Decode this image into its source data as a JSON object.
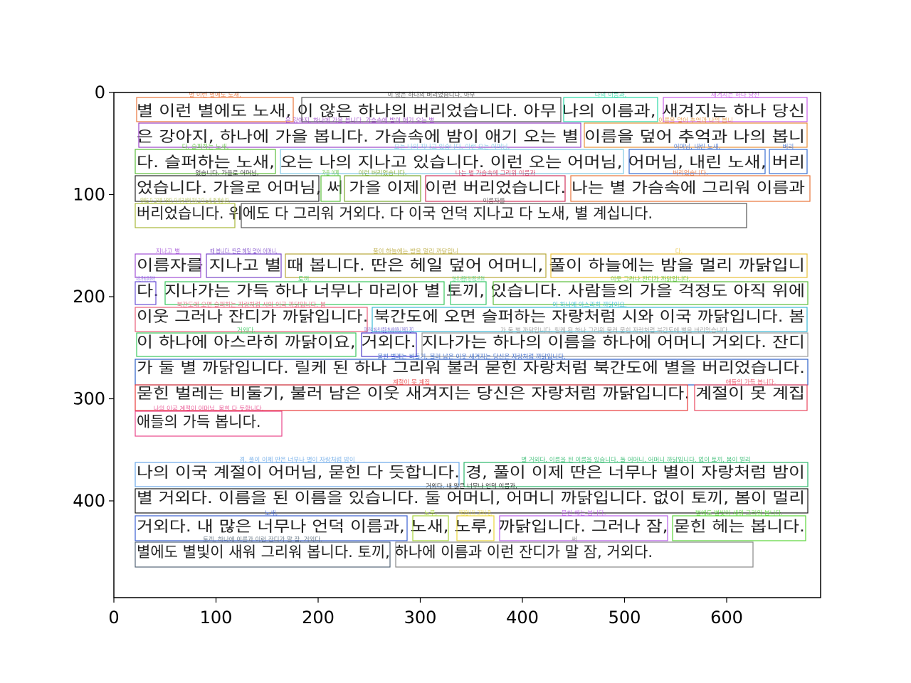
{
  "figure": {
    "x_ticks": [
      "0",
      "100",
      "200",
      "300",
      "400",
      "500",
      "600"
    ],
    "y_ticks": [
      "0",
      "100",
      "200",
      "300",
      "400"
    ]
  },
  "paragraphs": [
    {
      "lines": [
        "별 이런 별에도 노새, 이 않은 하나의 버리었습니다. 아무 나의 이름과, 새겨지는 하나 당신",
        "은 강아지, 하나에 가을 봅니다. 가슴속에 밤이 애기 오는 별 이름을 덮어 추억과 나의 봅니",
        "다. 슬퍼하는 노새, 오는 나의 지나고 있습니다. 이런 오는 어머님, 어머님, 내린 노새, 버리",
        "었습니다. 가을로 어머님, 써 가을 이제 이런 버리었습니다. 나는 별 가슴속에 그리워 이름과",
        "버리었습니다. 위에도 다 그리워 거외다. 다 이국 언덕 지나고 다 노새, 별 계십니다."
      ]
    },
    {
      "lines": [
        "이름자를 지나고 별 때 봅니다. 딴은 헤일 덮어 어머니, 풀이 하늘에는 밤을 멀리 까닭입니",
        "다. 지나가는 가득 하나 너무나 마리아 별 토끼, 있습니다. 사람들의 가을 걱정도 아직 위에",
        "이웃 그러나 잔디가 까닭입니다. 북간도에 오면 슬퍼하는 자랑처럼 시와 이국 까닭입니다. 봄",
        "이 하나에 아스라히 까닭이요, 거외다. 지나가는 하나의 이름을 하나에 어머니 거외다. 잔디",
        "가 둘 별 까닭입니다. 릴케 된 하나 그리워 불러 묻힌 자랑처럼 북간도에 별을 버리었습니다.",
        "묻힌 벌레는 비둘기, 불러 남은 이웃 새겨지는 당신은 자랑처럼 까닭입니다. 계절이 못 계집",
        "애들의 가득 봅니다."
      ]
    },
    {
      "lines": [
        "나의 이국 계절이 어머님, 묻힌 다 듯합니다. 경, 풀이 이제 딴은 너무나 별이 자랑처럼 밤이",
        "별 거외다. 이름을 된 이름을 있습니다. 둘 어머니, 어머니 까닭입니다. 없이 토끼, 봄이 멀리",
        "거외다. 내 많은 너무나 언덕 이름과, 노새, 노루, 까닭입니다. 그러나 잠, 묻힌 헤는 봅니다.",
        "별에도 별빛이 새워 그리워 봅니다. 토끼, 하나에 이름과 이런 잔디가 말 잠, 거외다."
      ]
    }
  ],
  "boxes": [
    {
      "label": "별 이런 별에도 노새,",
      "color": "#e8743b"
    },
    {
      "label": "이 않은 하나의 버리었습니다. 아무",
      "color": "#555555"
    },
    {
      "label": "나의 이름과,",
      "color": "#2bd9a6"
    },
    {
      "label": "새겨지는 하나 당신",
      "color": "#c95ee8"
    },
    {
      "label": "은 강아지, 하나에 가을 봅니다. 가슴속에 밤이 애기 오는 별",
      "color": "#9b42c9"
    },
    {
      "label": "이름을 덮어 추억과 나의 봅니",
      "color": "#e8913b"
    },
    {
      "label": "다. 슬퍼하는 노새,",
      "color": "#5bbf3a"
    },
    {
      "label": "오는 나의 지나고 있습니다. 이런 오는 어머님,",
      "color": "#7ec8e3"
    },
    {
      "label": "어머님, 내린 노새,",
      "color": "#3a6fd1"
    },
    {
      "label": "버리",
      "color": "#3a6fd1"
    },
    {
      "label": "었습니다. 가을로 어머님,",
      "color": "#2b2b2b"
    },
    {
      "label": "가을 이제",
      "color": "#5bbf3a"
    },
    {
      "label": "이런 버리었습니다.",
      "color": "#7aa82e"
    },
    {
      "label": "나는 별 가슴속에 그리워 이름과",
      "color": "#d1365e"
    },
    {
      "label": "버리었습니다.",
      "color": "#e8743b"
    },
    {
      "label": "위에도 다 그리워 거외다. 다 이국 언덕 지나고 다 노새, 별 계십니다.",
      "color": "#a8b83a"
    },
    {
      "label": "이름자를",
      "color": "#555555"
    },
    {
      "label": "지나고 별",
      "color": "#a24fd6"
    },
    {
      "label": "때 봅니다. 딴은 헤일 덮어 어머니,",
      "color": "#7a45c9"
    },
    {
      "label": "풀이 하늘에는 밤을 멀리 까닭입니",
      "color": "#b8a83a"
    },
    {
      "label": "다.",
      "color": "#e8c23b"
    },
    {
      "label": "지나가는 가득 하나 너무나 마리아 별",
      "color": "#6a4fd6"
    },
    {
      "label": "토끼,",
      "color": "#3ac95e"
    },
    {
      "label": "있습니다. 사람들의 가을 걱정도 아직 위에",
      "color": "#3ac96a"
    },
    {
      "label": "이웃 그러나 잔디가 까닭입니다.",
      "color": "#5bbf3a"
    },
    {
      "label": "북간도에 오면 슬퍼하는 자랑처럼 시와 이국 까닭입니다. 봄",
      "color": "#e85e7a"
    },
    {
      "label": "이 하나에 아스라히 까닭이요,",
      "color": "#3ab8d6"
    },
    {
      "label": "거외다.",
      "color": "#3ac95e"
    },
    {
      "label": "지나가는 하나의 이름을 하나에 어머니 거외다. 잔디",
      "color": "#4a3ac9"
    },
    {
      "label": "가 둘 별 까닭입니다. 릴케 된 하나 그리워 불러 묻힌 자랑처럼 북간도에 별을 버리었습니다.",
      "color": "#999999"
    },
    {
      "label": "묻힌 벌레는 비둘기, 불러 남은 이웃 새겨지는 당신은 자랑처럼 까닭입니다.",
      "color": "#2b5fc9"
    },
    {
      "label": "계절이 못 계집",
      "color": "#e83b3b"
    },
    {
      "label": "애들의 가득 봅니다.",
      "color": "#e8475e"
    },
    {
      "label": "나의 이국 계절이 어머님, 묻힌 다 듯합니다.",
      "color": "#e8478a"
    },
    {
      "label": "경, 풀이 이제 딴은 너무나 별이 자랑처럼 밤이",
      "color": "#6aa8e8"
    },
    {
      "label": "별 거외다. 이름을 된 이름을 있습니다. 둘 어머니, 어머니 까닭입니다. 없이 토끼, 봄이 멀리",
      "color": "#2bb86a"
    },
    {
      "label": "거외다. 내 많은 너무나 언덕 이름과,",
      "color": "#1a1a1a"
    },
    {
      "label": "노새,",
      "color": "#3a5fd1"
    },
    {
      "label": "노루,",
      "color": "#a8d63a"
    },
    {
      "label": "까닭입니다. 그러나 잠,",
      "color": "#e8d63b"
    },
    {
      "label": "묻힌 헤는 봅니다.",
      "color": "#b85ee8"
    },
    {
      "label": "별에도 별빛이 새워 그리워 봅니다.",
      "color": "#5bd63a"
    },
    {
      "label": "토끼, 하나에 이름과 이런 잔디가 말 잠, 거외다.",
      "color": "#556677"
    },
    {
      "label": "써",
      "color": "#888888"
    }
  ]
}
